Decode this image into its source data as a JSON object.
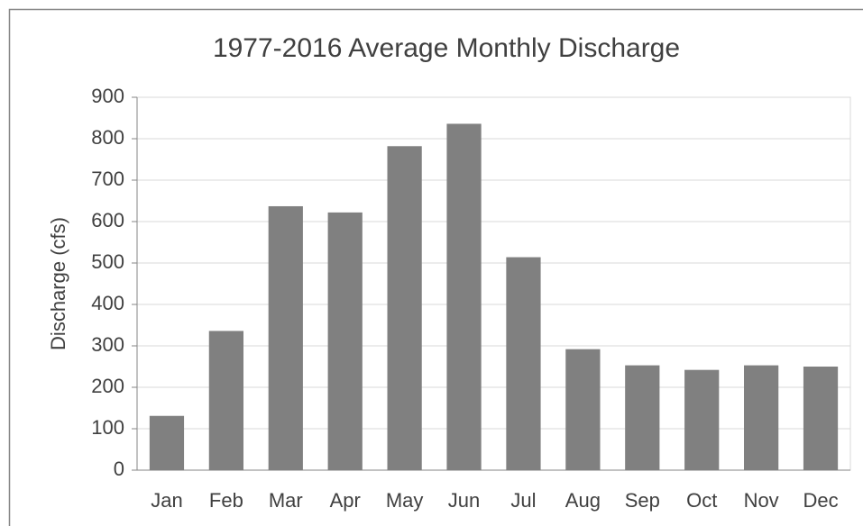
{
  "chart_data": {
    "type": "bar",
    "title": "1977-2016 Average Monthly Discharge",
    "y_label": "Discharge (cfs)",
    "categories": [
      "Jan",
      "Feb",
      "Mar",
      "Apr",
      "May",
      "Jun",
      "Jul",
      "Aug",
      "Sep",
      "Oct",
      "Nov",
      "Dec"
    ],
    "values": [
      131,
      336,
      637,
      622,
      782,
      836,
      514,
      292,
      253,
      242,
      253,
      250
    ],
    "color": "#808080",
    "ylim": [
      0,
      900
    ],
    "yticks": [
      0,
      100,
      200,
      300,
      400,
      500,
      600,
      700,
      800,
      900
    ],
    "grid": true
  }
}
